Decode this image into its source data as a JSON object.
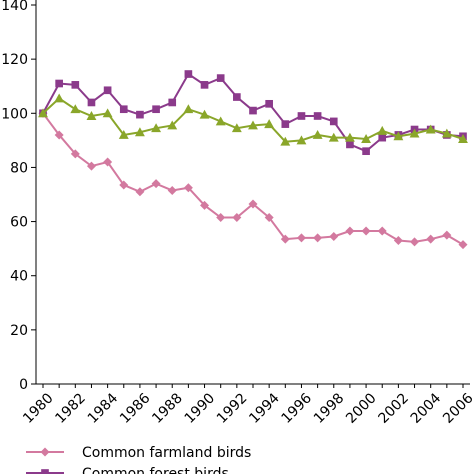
{
  "chart_data": {
    "type": "line",
    "x": [
      1980,
      1981,
      1982,
      1983,
      1984,
      1985,
      1986,
      1987,
      1988,
      1989,
      1990,
      1991,
      1992,
      1993,
      1994,
      1995,
      1996,
      1997,
      1998,
      1999,
      2000,
      2001,
      2002,
      2003,
      2004,
      2005,
      2006
    ],
    "series": [
      {
        "name": "Common farmland birds",
        "color": "#d3799f",
        "marker": "diamond",
        "values": [
          100,
          92,
          85,
          80.5,
          82,
          73.5,
          71,
          74,
          71.5,
          72.5,
          66,
          61.5,
          61.5,
          66.5,
          61.5,
          53.5,
          54,
          54,
          54.5,
          56.5,
          56.5,
          56.5,
          53,
          52.5,
          53.5,
          55,
          51.5
        ]
      },
      {
        "name": "Common forest birds",
        "color": "#8b3a8b",
        "marker": "square",
        "values": [
          100,
          111,
          110.5,
          104,
          108.5,
          101.5,
          99.5,
          101.5,
          104,
          114.5,
          110.5,
          113,
          106,
          101,
          103.5,
          96,
          99,
          99,
          97,
          88.5,
          86,
          91,
          92,
          94,
          94,
          92,
          91.5
        ]
      },
      {
        "name": "",
        "color": "#8aa62a",
        "marker": "triangle",
        "values": [
          100,
          105.5,
          101.5,
          99,
          100,
          92,
          93,
          94.5,
          95.5,
          101.5,
          99.5,
          97,
          94.5,
          95.5,
          96,
          89.5,
          90,
          92,
          91,
          91,
          90.5,
          93.5,
          91.5,
          92.5,
          94,
          92.5,
          90.5
        ]
      }
    ],
    "ylim": [
      0,
      140
    ],
    "yticks": [
      0,
      20,
      40,
      60,
      80,
      100,
      120,
      140
    ],
    "xticks": [
      1980,
      1982,
      1984,
      1986,
      1988,
      1990,
      1992,
      1994,
      1996,
      1998,
      2000,
      2002,
      2004,
      2006
    ],
    "legend_position": "bottom",
    "axis_color": "#000000"
  }
}
